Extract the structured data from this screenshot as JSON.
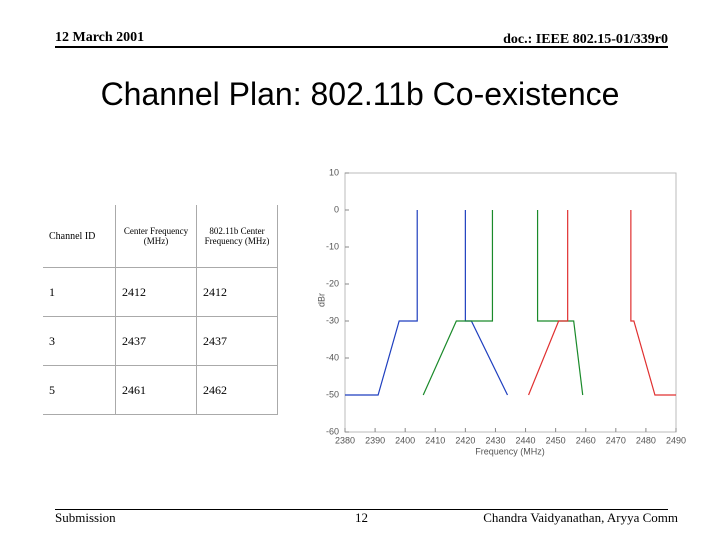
{
  "header": {
    "date": "12 March 2001",
    "doc": "doc.: IEEE 802.15-01/339r0"
  },
  "title": "Channel Plan: 802.11b Co-existence",
  "table": {
    "headers": [
      "Channel ID",
      "Center Frequency (MHz)",
      "802.11b Center Frequency (MHz)"
    ],
    "rows": [
      [
        "1",
        "2412",
        "2412"
      ],
      [
        "3",
        "2437",
        "2437"
      ],
      [
        "5",
        "2461",
        "2462"
      ]
    ]
  },
  "footer": {
    "label": "Submission",
    "page": "12",
    "author": "Chandra Vaidyanathan, Aryya Comm"
  },
  "chart_data": {
    "type": "line",
    "xlabel": "Frequency (MHz)",
    "ylabel": "dBr",
    "xlim": [
      2380,
      2490
    ],
    "ylim": [
      -60,
      10
    ],
    "xticks": [
      2380,
      2390,
      2400,
      2410,
      2420,
      2430,
      2440,
      2450,
      2460,
      2470,
      2480,
      2490
    ],
    "yticks": [
      -60,
      -50,
      -40,
      -30,
      -20,
      -10,
      0,
      10
    ],
    "series": [
      {
        "color": "#1f3fbf",
        "x": [
          2380,
          2391,
          2398,
          2404,
          2404,
          2412,
          2420,
          2420,
          2422,
          2434
        ],
        "values": [
          -50,
          -50,
          -30,
          -30,
          0,
          null,
          0,
          -30,
          -30,
          -50
        ]
      },
      {
        "color": "#1a8a2a",
        "x": [
          2406,
          2417,
          2429,
          2429,
          2437,
          2444,
          2444,
          2456,
          2459
        ],
        "values": [
          -50,
          -30,
          -30,
          0,
          null,
          0,
          -30,
          -30,
          -50
        ]
      },
      {
        "color": "#e03030",
        "x": [
          2441,
          2451,
          2454,
          2454,
          2462,
          2475,
          2475,
          2476,
          2483,
          2490
        ],
        "values": [
          -50,
          -30,
          -30,
          0,
          null,
          0,
          -30,
          -30,
          -50,
          -50
        ]
      }
    ]
  }
}
